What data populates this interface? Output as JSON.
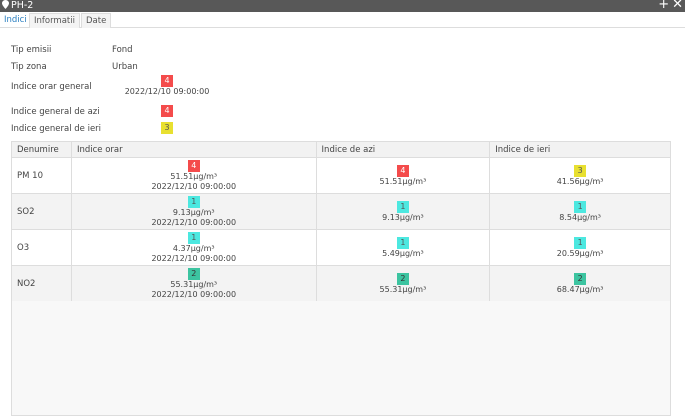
{
  "window": {
    "title": "PH-2"
  },
  "tabs": [
    "Indici",
    "Informatii",
    "Date"
  ],
  "info": {
    "tip_emisii_label": "Tip emisii",
    "tip_emisii": "Fond",
    "tip_zona_label": "Tip zona",
    "tip_zona": "Urban",
    "orar_label": "Indice orar general",
    "orar_value": "4",
    "orar_time": "2022/12/10 09:00:00",
    "azi_label": "Indice general de azi",
    "azi_value": "4",
    "ieri_label": "Indice general de ieri",
    "ieri_value": "3"
  },
  "table": {
    "headers": [
      "Denumire",
      "Indice orar",
      "Indice de azi",
      "Indice de ieri"
    ],
    "rows": [
      {
        "name": "PM 10",
        "orar": "4",
        "orar_val": "51.51µg/m³",
        "orar_time": "2022/12/10 09:00:00",
        "azi": "4",
        "azi_val": "51.51µg/m³",
        "ieri": "3",
        "ieri_val": "41.56µg/m³"
      },
      {
        "name": "SO2",
        "orar": "1",
        "orar_val": "9.13µg/m³",
        "orar_time": "2022/12/10 09:00:00",
        "azi": "1",
        "azi_val": "9.13µg/m³",
        "ieri": "1",
        "ieri_val": "8.54µg/m³"
      },
      {
        "name": "O3",
        "orar": "1",
        "orar_val": "4.37µg/m³",
        "orar_time": "2022/12/10 09:00:00",
        "azi": "1",
        "azi_val": "5.49µg/m³",
        "ieri": "1",
        "ieri_val": "20.59µg/m³"
      },
      {
        "name": "NO2",
        "orar": "2",
        "orar_val": "55.31µg/m³",
        "orar_time": "2022/12/10 09:00:00",
        "azi": "2",
        "azi_val": "55.31µg/m³",
        "ieri": "2",
        "ieri_val": "68.47µg/m³"
      }
    ]
  },
  "colors": {
    "1": "#4ce8e0",
    "2": "#3cc4a0",
    "3": "#e8e030",
    "4": "#f44b4b"
  }
}
